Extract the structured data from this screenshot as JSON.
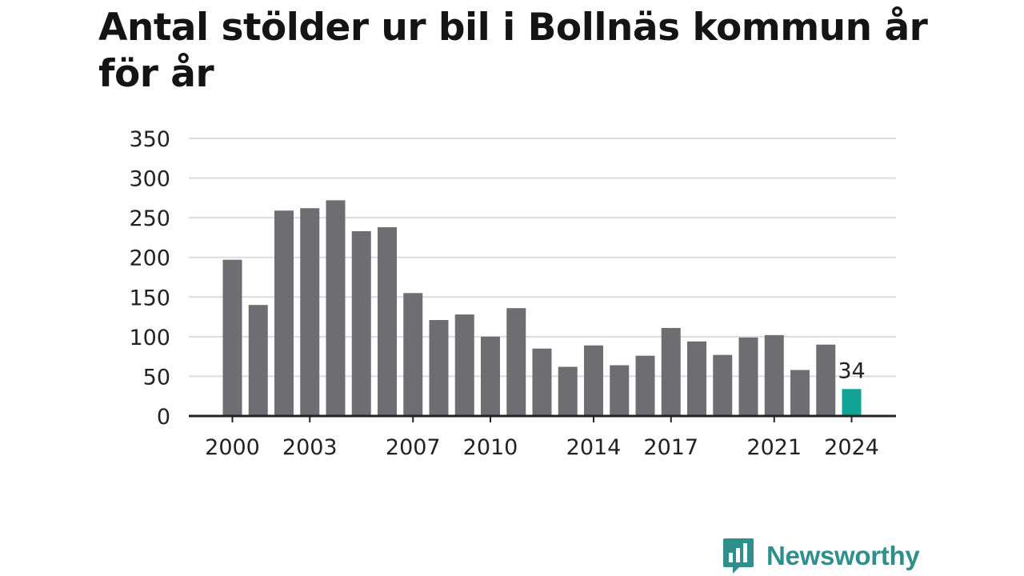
{
  "title": "Antal stölder ur bil i Bollnäs kommun år för år",
  "brand": {
    "name": "Newsworthy",
    "color": "#2f8f8a",
    "icon": "speech-bubble-bar-chart-icon"
  },
  "colors": {
    "bar": "#6e6d72",
    "highlight": "#12a394",
    "grid": "#dcdcdc",
    "axis": "#222222"
  },
  "chart_data": {
    "type": "bar",
    "title": "Antal stölder ur bil i Bollnäs kommun år för år",
    "xlabel": "",
    "ylabel": "",
    "ylim": [
      0,
      350
    ],
    "yticks": [
      0,
      50,
      100,
      150,
      200,
      250,
      300,
      350
    ],
    "xtick_labels": [
      "2000",
      "2003",
      "2007",
      "2010",
      "2014",
      "2017",
      "2021",
      "2024"
    ],
    "grid": true,
    "categories": [
      "2000",
      "2001",
      "2002",
      "2003",
      "2004",
      "2005",
      "2006",
      "2007",
      "2008",
      "2009",
      "2010",
      "2011",
      "2012",
      "2013",
      "2014",
      "2015",
      "2016",
      "2017",
      "2018",
      "2019",
      "2020",
      "2021",
      "2022",
      "2023",
      "2024"
    ],
    "values": [
      197,
      140,
      259,
      262,
      272,
      233,
      238,
      155,
      121,
      128,
      100,
      136,
      85,
      62,
      89,
      64,
      76,
      111,
      94,
      77,
      99,
      102,
      58,
      90,
      34
    ],
    "highlight_index": 24,
    "annotation": {
      "category": "2024",
      "text": "34"
    }
  }
}
